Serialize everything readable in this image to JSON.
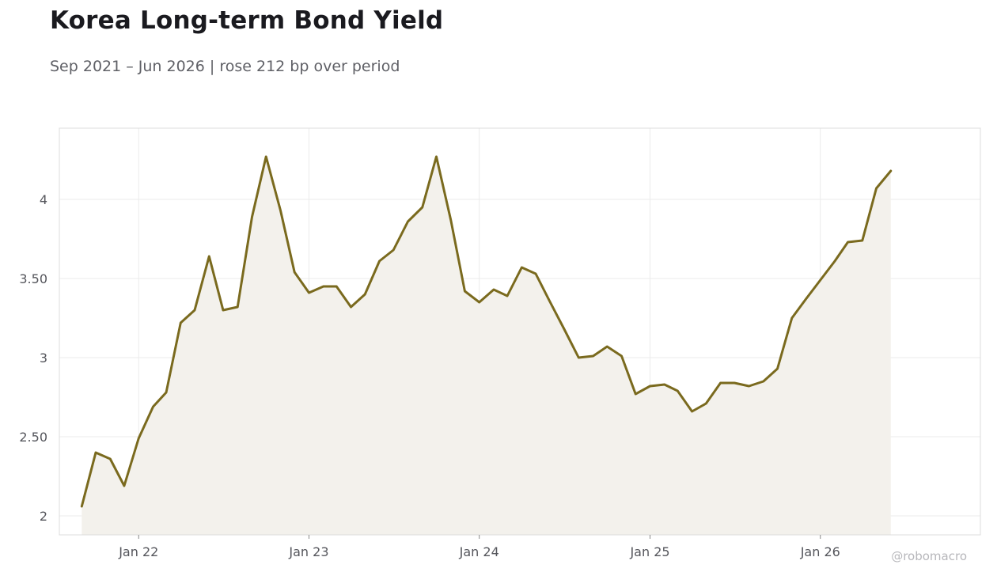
{
  "title": "Korea Long-term Bond Yield",
  "subtitle": "Sep 2021 – Jun 2026 | rose 212 bp over period",
  "watermark": "@robomacro",
  "colors": {
    "line": "#7a6a1e",
    "fill": "#f3f1ec",
    "grid": "#ebebeb",
    "frame": "#dddddd"
  },
  "chart_data": {
    "type": "area",
    "title": "Korea Long-term Bond Yield",
    "subtitle": "Sep 2021 – Jun 2026 | rose 212 bp over period",
    "xlabel": "",
    "ylabel": "",
    "x_start": "2021-09",
    "x_end": "2026-06",
    "xlim": [
      "2021-07-15",
      "2026-12-10"
    ],
    "ylim": [
      1.88,
      4.45
    ],
    "grid": true,
    "x_ticks": [
      {
        "date": "2022-01",
        "label": "Jan 22"
      },
      {
        "date": "2023-01",
        "label": "Jan 23"
      },
      {
        "date": "2024-01",
        "label": "Jan 24"
      },
      {
        "date": "2025-01",
        "label": "Jan 25"
      },
      {
        "date": "2026-01",
        "label": "Jan 26"
      }
    ],
    "y_ticks": [
      {
        "value": 2,
        "label": "2"
      },
      {
        "value": 2.5,
        "label": "2.50"
      },
      {
        "value": 3,
        "label": "3"
      },
      {
        "value": 3.5,
        "label": "3.50"
      },
      {
        "value": 4,
        "label": "4"
      }
    ],
    "series": [
      {
        "x": [
          "2021-09",
          "2021-10",
          "2021-11",
          "2021-12",
          "2022-01",
          "2022-02",
          "2022-03",
          "2022-04",
          "2022-05",
          "2022-06",
          "2022-07",
          "2022-08",
          "2022-09",
          "2022-10",
          "2022-11",
          "2022-12",
          "2023-01",
          "2023-02",
          "2023-03",
          "2023-04",
          "2023-05",
          "2023-06",
          "2023-07",
          "2023-08",
          "2023-09",
          "2023-10",
          "2023-11",
          "2023-12",
          "2024-01",
          "2024-02",
          "2024-03",
          "2024-04",
          "2024-05",
          "2024-06",
          "2024-07",
          "2024-08",
          "2024-09",
          "2024-10",
          "2024-11",
          "2024-12",
          "2025-01",
          "2025-02",
          "2025-03",
          "2025-04",
          "2025-05",
          "2025-06",
          "2025-07",
          "2025-08",
          "2025-09",
          "2025-10",
          "2025-11",
          "2025-12",
          "2026-01",
          "2026-02",
          "2026-03",
          "2026-04",
          "2026-05",
          "2026-06"
        ],
        "values": [
          2.06,
          2.4,
          2.36,
          2.19,
          2.49,
          2.69,
          2.78,
          3.22,
          3.3,
          3.64,
          3.3,
          3.32,
          3.89,
          4.27,
          3.93,
          3.54,
          3.41,
          3.45,
          3.45,
          3.32,
          3.4,
          3.61,
          3.68,
          3.86,
          3.95,
          4.27,
          3.87,
          3.42,
          3.35,
          3.43,
          3.39,
          3.57,
          3.53,
          3.35,
          3.18,
          3.0,
          3.01,
          3.07,
          3.01,
          2.77,
          2.82,
          2.83,
          2.79,
          2.66,
          2.71,
          2.84,
          2.84,
          2.82,
          2.85,
          2.93,
          3.25,
          3.37,
          3.49,
          3.61,
          3.73,
          3.74,
          4.07,
          4.18
        ]
      }
    ]
  }
}
